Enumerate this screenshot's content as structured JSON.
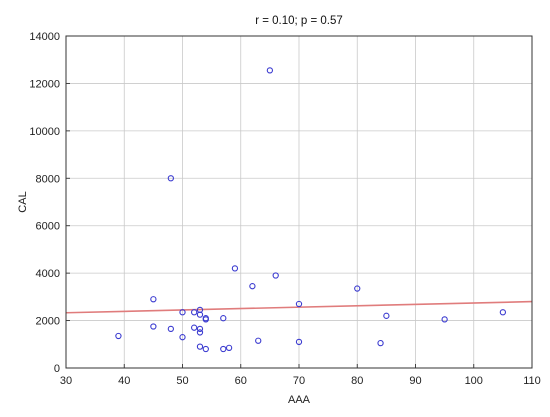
{
  "chart_data": {
    "type": "scatter",
    "title": "r = 0.10; p = 0.57",
    "xlabel": "AAA",
    "ylabel": "CAL",
    "xlim": [
      30,
      110
    ],
    "ylim": [
      0,
      14000
    ],
    "xticks": [
      30,
      40,
      50,
      60,
      70,
      80,
      90,
      100,
      110
    ],
    "yticks": [
      0,
      2000,
      4000,
      6000,
      8000,
      10000,
      12000,
      14000
    ],
    "grid": true,
    "series": [
      {
        "points": [
          {
            "x": 39,
            "y": 1350
          },
          {
            "x": 45,
            "y": 2900
          },
          {
            "x": 45,
            "y": 1750
          },
          {
            "x": 48,
            "y": 8000
          },
          {
            "x": 48,
            "y": 1650
          },
          {
            "x": 50,
            "y": 2350
          },
          {
            "x": 50,
            "y": 1300
          },
          {
            "x": 52,
            "y": 2350
          },
          {
            "x": 52,
            "y": 1700
          },
          {
            "x": 53,
            "y": 2450
          },
          {
            "x": 53,
            "y": 2250
          },
          {
            "x": 53,
            "y": 1650
          },
          {
            "x": 53,
            "y": 1500
          },
          {
            "x": 53,
            "y": 900
          },
          {
            "x": 54,
            "y": 2100
          },
          {
            "x": 54,
            "y": 2050
          },
          {
            "x": 54,
            "y": 800
          },
          {
            "x": 57,
            "y": 2100
          },
          {
            "x": 57,
            "y": 800
          },
          {
            "x": 58,
            "y": 850
          },
          {
            "x": 59,
            "y": 4200
          },
          {
            "x": 62,
            "y": 3450
          },
          {
            "x": 63,
            "y": 1150
          },
          {
            "x": 65,
            "y": 12550
          },
          {
            "x": 66,
            "y": 3900
          },
          {
            "x": 70,
            "y": 2700
          },
          {
            "x": 70,
            "y": 1100
          },
          {
            "x": 80,
            "y": 3350
          },
          {
            "x": 84,
            "y": 1050
          },
          {
            "x": 85,
            "y": 2200
          },
          {
            "x": 95,
            "y": 2050
          },
          {
            "x": 105,
            "y": 2350
          }
        ]
      }
    ],
    "trendline": {
      "x": [
        30,
        110
      ],
      "y": [
        2330,
        2800
      ]
    },
    "colors": {
      "points": "#3b3bd0",
      "trendline": "#e07c7c",
      "grid": "#c9c9c9",
      "axis": "#333333"
    }
  }
}
